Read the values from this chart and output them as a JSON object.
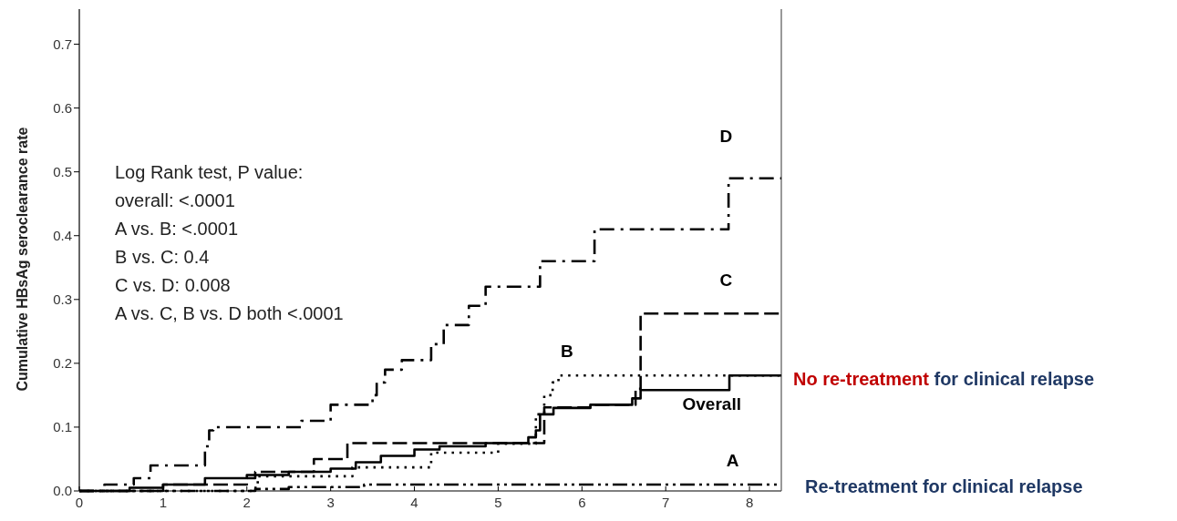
{
  "chart_data": {
    "type": "step",
    "ylabel": "Cumulative HBsAg seroclearance rate",
    "xlim": [
      0,
      8.38
    ],
    "ylim": [
      0,
      0.755
    ],
    "xticks": [
      0,
      1,
      2,
      3,
      4,
      5,
      6,
      7,
      8
    ],
    "yticks": [
      {
        "value": 0,
        "label": "0.0"
      },
      {
        "value": 0.1,
        "label": "0.1"
      },
      {
        "value": 0.2,
        "label": "0.2"
      },
      {
        "value": 0.3,
        "label": "0.3"
      },
      {
        "value": 0.4,
        "label": "0.4"
      },
      {
        "value": 0.5,
        "label": "0.5"
      },
      {
        "value": 0.6,
        "label": "0.6"
      },
      {
        "value": 0.7,
        "label": "0.7"
      }
    ],
    "grid": false,
    "series": [
      {
        "name": "D",
        "color": "#000000",
        "line_style": "dashdot",
        "x": [
          0,
          0.3,
          0.65,
          0.85,
          1.5,
          1.55,
          1.6,
          2.65,
          3.0,
          3.5,
          3.55,
          3.65,
          3.85,
          4.2,
          4.35,
          4.65,
          4.85,
          5.5,
          6.15,
          7.75,
          8.38
        ],
        "values": [
          0,
          0.01,
          0.02,
          0.04,
          0.07,
          0.095,
          0.1,
          0.11,
          0.135,
          0.15,
          0.17,
          0.19,
          0.205,
          0.23,
          0.26,
          0.29,
          0.32,
          0.36,
          0.41,
          0.49,
          0.49
        ]
      },
      {
        "name": "C",
        "color": "#000000",
        "line_style": "dashed",
        "x": [
          0,
          1.0,
          2.0,
          2.1,
          2.8,
          3.2,
          5.55,
          6.1,
          6.64,
          6.7,
          8.38
        ],
        "values": [
          0,
          0.01,
          0.02,
          0.03,
          0.05,
          0.075,
          0.131,
          0.135,
          0.16,
          0.278,
          0.278
        ]
      },
      {
        "name": "B",
        "color": "#000000",
        "line_style": "dotted",
        "x": [
          0,
          2.05,
          2.13,
          3.26,
          4.2,
          5.0,
          5.45,
          5.55,
          5.65,
          5.72,
          8.38
        ],
        "values": [
          0,
          0.005,
          0.023,
          0.037,
          0.06,
          0.074,
          0.12,
          0.15,
          0.17,
          0.181,
          0.181
        ]
      },
      {
        "name": "Overall",
        "color": "#000000",
        "line_style": "solid",
        "x": [
          0,
          0.6,
          1.0,
          1.5,
          2.0,
          2.5,
          3.0,
          3.3,
          3.6,
          4.0,
          4.3,
          4.85,
          5.36,
          5.45,
          5.5,
          5.66,
          6.1,
          6.6,
          6.7,
          7.76,
          8.38
        ],
        "values": [
          0,
          0.005,
          0.01,
          0.02,
          0.025,
          0.03,
          0.035,
          0.045,
          0.055,
          0.065,
          0.07,
          0.075,
          0.084,
          0.095,
          0.12,
          0.13,
          0.135,
          0.145,
          0.158,
          0.181,
          0.181
        ]
      },
      {
        "name": "A",
        "color": "#000000",
        "line_style": "dashdotdot",
        "x": [
          0,
          2.1,
          2.5,
          3.4,
          8.38
        ],
        "values": [
          0,
          0.003,
          0.006,
          0.01,
          0.01
        ]
      }
    ],
    "annotations": [
      "Log Rank test, P value:",
      "overall: <.0001",
      "A vs. B: <.0001",
      "B vs. C: 0.4",
      "C vs. D: 0.008",
      "A vs. C, B vs. D both <.0001",
      "No re-treatment",
      "for clinical relapse",
      "Re-treatment for clinical relapse"
    ]
  }
}
